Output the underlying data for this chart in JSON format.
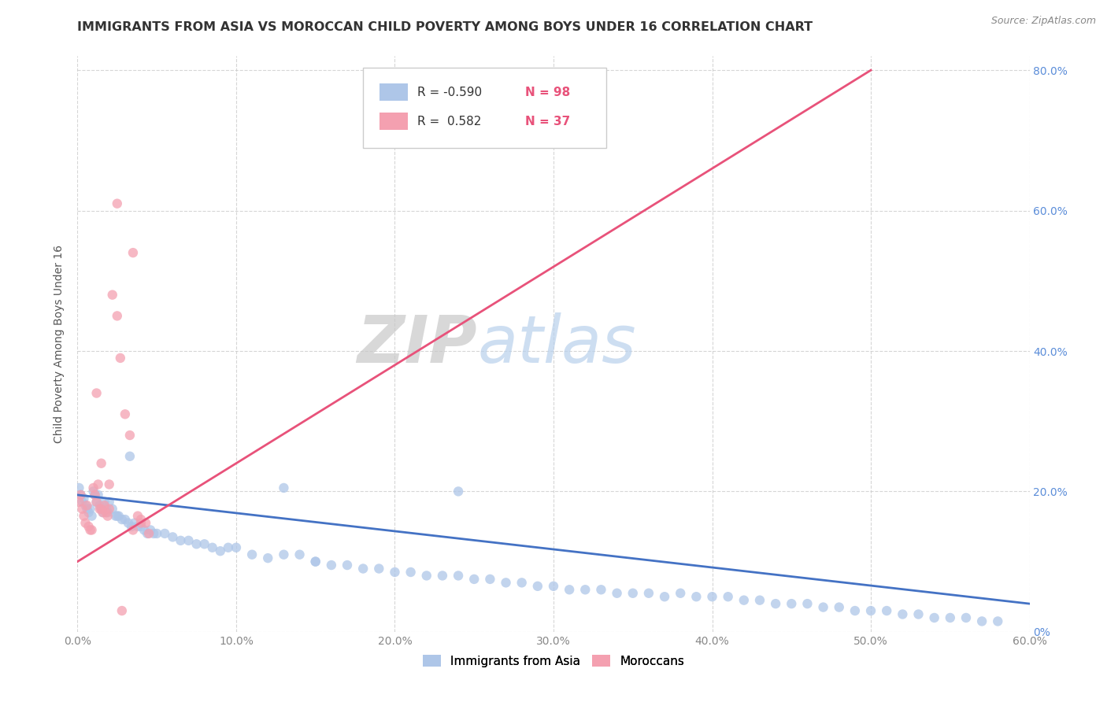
{
  "title": "IMMIGRANTS FROM ASIA VS MOROCCAN CHILD POVERTY AMONG BOYS UNDER 16 CORRELATION CHART",
  "source": "Source: ZipAtlas.com",
  "ylabel": "Child Poverty Among Boys Under 16",
  "xlim": [
    0.0,
    0.6
  ],
  "ylim": [
    0.0,
    0.82
  ],
  "xticks": [
    0.0,
    0.1,
    0.2,
    0.3,
    0.4,
    0.5,
    0.6
  ],
  "xticklabels": [
    "0.0%",
    "10.0%",
    "20.0%",
    "30.0%",
    "40.0%",
    "50.0%",
    "60.0%"
  ],
  "yticks": [
    0.0,
    0.2,
    0.4,
    0.6,
    0.8
  ],
  "yticklabels": [
    "0%",
    "20.0%",
    "40.0%",
    "60.0%",
    "80.0%"
  ],
  "blue_color": "#aec6e8",
  "pink_color": "#f4a0b0",
  "blue_line_color": "#4472c4",
  "pink_line_color": "#e8527a",
  "legend_blue_label": "Immigrants from Asia",
  "legend_pink_label": "Moroccans",
  "R_blue": -0.59,
  "N_blue": 98,
  "R_pink": 0.582,
  "N_pink": 37,
  "watermark_zip": "ZIP",
  "watermark_atlas": "atlas",
  "background_color": "#ffffff",
  "grid_color": "#cccccc",
  "title_color": "#333333",
  "blue_scatter_x": [
    0.001,
    0.002,
    0.003,
    0.004,
    0.005,
    0.006,
    0.007,
    0.008,
    0.009,
    0.01,
    0.011,
    0.012,
    0.013,
    0.014,
    0.015,
    0.016,
    0.017,
    0.018,
    0.019,
    0.02,
    0.022,
    0.024,
    0.026,
    0.028,
    0.03,
    0.032,
    0.034,
    0.036,
    0.038,
    0.04,
    0.042,
    0.044,
    0.046,
    0.048,
    0.05,
    0.055,
    0.06,
    0.065,
    0.07,
    0.075,
    0.08,
    0.085,
    0.09,
    0.095,
    0.1,
    0.11,
    0.12,
    0.13,
    0.14,
    0.15,
    0.16,
    0.17,
    0.18,
    0.19,
    0.2,
    0.21,
    0.22,
    0.23,
    0.24,
    0.25,
    0.26,
    0.27,
    0.28,
    0.29,
    0.3,
    0.31,
    0.32,
    0.33,
    0.34,
    0.35,
    0.36,
    0.37,
    0.38,
    0.39,
    0.4,
    0.41,
    0.42,
    0.43,
    0.44,
    0.45,
    0.46,
    0.47,
    0.48,
    0.49,
    0.5,
    0.51,
    0.52,
    0.53,
    0.54,
    0.55,
    0.56,
    0.57,
    0.58,
    0.025,
    0.033,
    0.13,
    0.15,
    0.24
  ],
  "blue_scatter_y": [
    0.205,
    0.195,
    0.185,
    0.19,
    0.18,
    0.175,
    0.17,
    0.175,
    0.165,
    0.2,
    0.195,
    0.185,
    0.195,
    0.18,
    0.175,
    0.17,
    0.185,
    0.175,
    0.17,
    0.185,
    0.175,
    0.165,
    0.165,
    0.16,
    0.16,
    0.155,
    0.15,
    0.155,
    0.15,
    0.15,
    0.145,
    0.14,
    0.145,
    0.14,
    0.14,
    0.14,
    0.135,
    0.13,
    0.13,
    0.125,
    0.125,
    0.12,
    0.115,
    0.12,
    0.12,
    0.11,
    0.105,
    0.11,
    0.11,
    0.1,
    0.095,
    0.095,
    0.09,
    0.09,
    0.085,
    0.085,
    0.08,
    0.08,
    0.08,
    0.075,
    0.075,
    0.07,
    0.07,
    0.065,
    0.065,
    0.06,
    0.06,
    0.06,
    0.055,
    0.055,
    0.055,
    0.05,
    0.055,
    0.05,
    0.05,
    0.05,
    0.045,
    0.045,
    0.04,
    0.04,
    0.04,
    0.035,
    0.035,
    0.03,
    0.03,
    0.03,
    0.025,
    0.025,
    0.02,
    0.02,
    0.02,
    0.015,
    0.015,
    0.165,
    0.25,
    0.205,
    0.1,
    0.2
  ],
  "pink_scatter_x": [
    0.001,
    0.002,
    0.003,
    0.004,
    0.005,
    0.006,
    0.007,
    0.008,
    0.009,
    0.01,
    0.011,
    0.012,
    0.013,
    0.014,
    0.015,
    0.016,
    0.017,
    0.018,
    0.019,
    0.02,
    0.022,
    0.025,
    0.027,
    0.03,
    0.033,
    0.035,
    0.038,
    0.04,
    0.043,
    0.045,
    0.012,
    0.015,
    0.02,
    0.025,
    0.028,
    0.035,
    0.04
  ],
  "pink_scatter_y": [
    0.185,
    0.195,
    0.175,
    0.165,
    0.155,
    0.18,
    0.15,
    0.145,
    0.145,
    0.205,
    0.195,
    0.185,
    0.21,
    0.175,
    0.175,
    0.17,
    0.18,
    0.17,
    0.165,
    0.175,
    0.48,
    0.45,
    0.39,
    0.31,
    0.28,
    0.54,
    0.165,
    0.155,
    0.155,
    0.14,
    0.34,
    0.24,
    0.21,
    0.61,
    0.03,
    0.145,
    0.16
  ],
  "blue_trend_x0": 0.0,
  "blue_trend_y0": 0.195,
  "blue_trend_x1": 0.6,
  "blue_trend_y1": 0.04,
  "pink_trend_x0": 0.0,
  "pink_trend_y0": 0.1,
  "pink_trend_x1": 0.5,
  "pink_trend_y1": 0.8
}
